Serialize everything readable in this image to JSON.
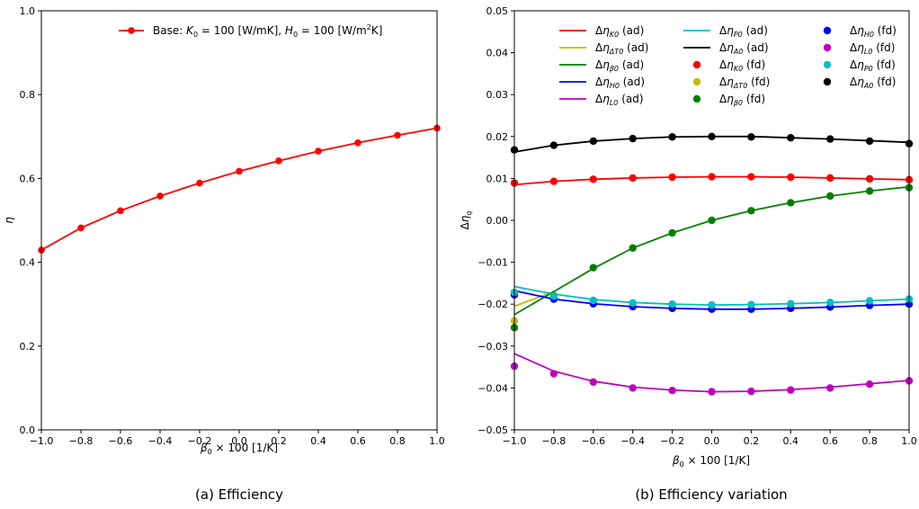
{
  "chart_data": [
    {
      "type": "line",
      "caption": "(a) Efficiency",
      "xlabel": "β0 × 100 [1/K]",
      "ylabel": "η",
      "xlim": [
        -1.0,
        1.0
      ],
      "ylim": [
        0.0,
        1.0
      ],
      "xticks": [
        "−1.0",
        "−0.8",
        "−0.6",
        "−0.4",
        "−0.2",
        "0.0",
        "0.2",
        "0.4",
        "0.6",
        "0.8",
        "1.0"
      ],
      "yticks": [
        "0.0",
        "0.2",
        "0.4",
        "0.6",
        "0.8",
        "1.0"
      ],
      "legend_position": "top-right",
      "x": [
        -1.0,
        -0.8,
        -0.6,
        -0.4,
        -0.2,
        0.0,
        0.2,
        0.4,
        0.6,
        0.8,
        1.0
      ],
      "series": [
        {
          "name": "Base: K0 = 100 [W/mK], H0 = 100 [W/m2K]",
          "color": "#ff0000",
          "marker": "circle",
          "values": [
            0.429,
            0.482,
            0.523,
            0.558,
            0.589,
            0.617,
            0.642,
            0.665,
            0.685,
            0.703,
            0.72
          ]
        }
      ]
    },
    {
      "type": "line",
      "caption": "(b) Efficiency variation",
      "xlabel": "β0 × 100 [1/K]",
      "ylabel": "Δηq",
      "xlim": [
        -1.0,
        1.0
      ],
      "ylim": [
        -0.05,
        0.05
      ],
      "xticks": [
        "−1.0",
        "−0.8",
        "−0.6",
        "−0.4",
        "−0.2",
        "0.0",
        "0.2",
        "0.4",
        "0.6",
        "0.8",
        "1.0"
      ],
      "yticks": [
        "−0.05",
        "−0.04",
        "−0.03",
        "−0.02",
        "−0.01",
        "0.00",
        "0.01",
        "0.02",
        "0.03",
        "0.04",
        "0.05"
      ],
      "legend_position": "top",
      "line_x": [
        -1.0,
        -0.8,
        -0.6,
        -0.4,
        -0.2,
        0.0,
        0.2,
        0.4,
        0.6,
        0.8,
        1.0
      ],
      "point_x": [
        -1.0,
        -0.8,
        -0.6,
        -0.4,
        -0.2,
        0.0,
        0.2,
        0.4,
        0.6,
        0.8,
        1.0
      ],
      "series": [
        {
          "name": "ΔηK0 (ad)",
          "style": "line",
          "color": "#ff0000",
          "values": [
            0.0085,
            0.0093,
            0.0098,
            0.0101,
            0.0103,
            0.0104,
            0.0104,
            0.0103,
            0.0101,
            0.0099,
            0.0097
          ]
        },
        {
          "name": "ΔηΔT0 (ad)",
          "style": "line",
          "color": "#bfbf00",
          "values": [
            -0.0205,
            -0.017,
            null,
            null,
            null,
            null,
            null,
            null,
            null,
            null,
            null
          ]
        },
        {
          "name": "Δηβ0 (ad)",
          "style": "line",
          "color": "#008000",
          "values": [
            -0.0225,
            -0.017,
            -0.0115,
            -0.0066,
            -0.003,
            0.0,
            0.0023,
            0.0042,
            0.0058,
            0.007,
            0.008
          ]
        },
        {
          "name": "ΔηH0 (ad)",
          "style": "line",
          "color": "#0000ff",
          "values": [
            -0.0168,
            -0.0188,
            -0.0199,
            -0.0206,
            -0.021,
            -0.0212,
            -0.0212,
            -0.021,
            -0.0207,
            -0.0203,
            -0.02
          ]
        },
        {
          "name": "ΔηL0 (ad)",
          "style": "line",
          "color": "#bf00bf",
          "values": [
            -0.0318,
            -0.036,
            -0.0384,
            -0.0398,
            -0.0405,
            -0.0409,
            -0.0408,
            -0.0404,
            -0.0398,
            -0.039,
            -0.0382
          ]
        },
        {
          "name": "ΔηP0 (ad)",
          "style": "line",
          "color": "#00bfbf",
          "values": [
            -0.0158,
            -0.0176,
            -0.0189,
            -0.0196,
            -0.02,
            -0.0202,
            -0.0201,
            -0.0199,
            -0.0196,
            -0.0192,
            -0.0188
          ]
        },
        {
          "name": "ΔηA0 (ad)",
          "style": "line",
          "color": "#000000",
          "values": [
            0.0163,
            0.0179,
            0.0189,
            0.0195,
            0.0199,
            0.02,
            0.02,
            0.0197,
            0.0194,
            0.019,
            0.0186
          ]
        },
        {
          "name": "ΔηK0 (fd)",
          "style": "points",
          "color": "#ff0000",
          "values": [
            0.0089,
            0.0093,
            0.0098,
            0.0101,
            0.0103,
            0.0104,
            0.0104,
            0.0103,
            0.0101,
            0.0099,
            0.0097
          ]
        },
        {
          "name": "ΔηΔT0 (fd)",
          "style": "points",
          "color": "#bfbf00",
          "values": [
            -0.024,
            null,
            null,
            null,
            null,
            null,
            null,
            null,
            null,
            null,
            null
          ]
        },
        {
          "name": "Δηβ0 (fd)",
          "style": "points",
          "color": "#008000",
          "values": [
            -0.0256,
            -0.018,
            -0.0113,
            -0.0066,
            -0.003,
            0.0,
            0.0023,
            0.0042,
            0.0058,
            0.007,
            0.0078
          ]
        },
        {
          "name": "ΔηH0 (fd)",
          "style": "points",
          "color": "#0000ff",
          "values": [
            -0.0178,
            -0.0188,
            -0.0199,
            -0.0206,
            -0.021,
            -0.0212,
            -0.0212,
            -0.021,
            -0.0207,
            -0.0203,
            -0.02
          ]
        },
        {
          "name": "ΔηL0 (fd)",
          "style": "points",
          "color": "#bf00bf",
          "values": [
            -0.0348,
            -0.0366,
            -0.0386,
            -0.04,
            -0.0406,
            -0.0409,
            -0.0408,
            -0.0405,
            -0.04,
            -0.0391,
            -0.0383
          ]
        },
        {
          "name": "ΔηP0 (fd)",
          "style": "points",
          "color": "#00bfbf",
          "values": [
            -0.0172,
            -0.0181,
            -0.0191,
            -0.0197,
            -0.02,
            -0.0202,
            -0.0201,
            -0.0199,
            -0.0196,
            -0.0192,
            -0.0188
          ]
        },
        {
          "name": "ΔηA0 (fd)",
          "style": "points",
          "color": "#000000",
          "values": [
            0.0168,
            0.0179,
            0.0189,
            0.0195,
            0.0199,
            0.02,
            0.0199,
            0.0197,
            0.0194,
            0.0189,
            0.0183
          ]
        }
      ]
    }
  ]
}
